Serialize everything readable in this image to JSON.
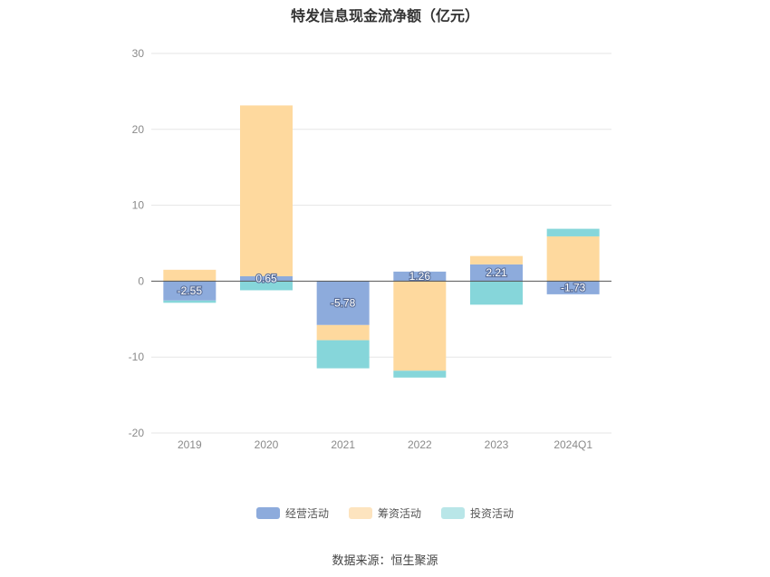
{
  "chart_data": {
    "type": "bar",
    "stacked": true,
    "title": "特发信息现金流净额（亿元）",
    "xlabel": "",
    "ylabel": "",
    "categories": [
      "2019",
      "2020",
      "2021",
      "2022",
      "2023",
      "2024Q1"
    ],
    "ylim": [
      -20,
      30
    ],
    "yticks": [
      -20,
      -10,
      0,
      10,
      20,
      30
    ],
    "grid": true,
    "legend_position": "bottom",
    "series": [
      {
        "name": "经营活动",
        "color": "#8dabdc",
        "values": [
          -2.55,
          0.65,
          -5.78,
          1.26,
          2.21,
          -1.73
        ],
        "labels": [
          "-2.55",
          "0.65",
          "-5.78",
          "1.26",
          "2.21",
          "-1.73"
        ]
      },
      {
        "name": "筹资活动",
        "color": "#fed99e",
        "values": [
          1.5,
          22.5,
          -2.0,
          -11.8,
          1.1,
          5.9
        ]
      },
      {
        "name": "投资活动",
        "color": "#86d6da",
        "values": [
          -0.3,
          -1.2,
          -3.7,
          -0.9,
          -3.1,
          1.0
        ]
      }
    ]
  },
  "source": "数据来源：恒生聚源"
}
